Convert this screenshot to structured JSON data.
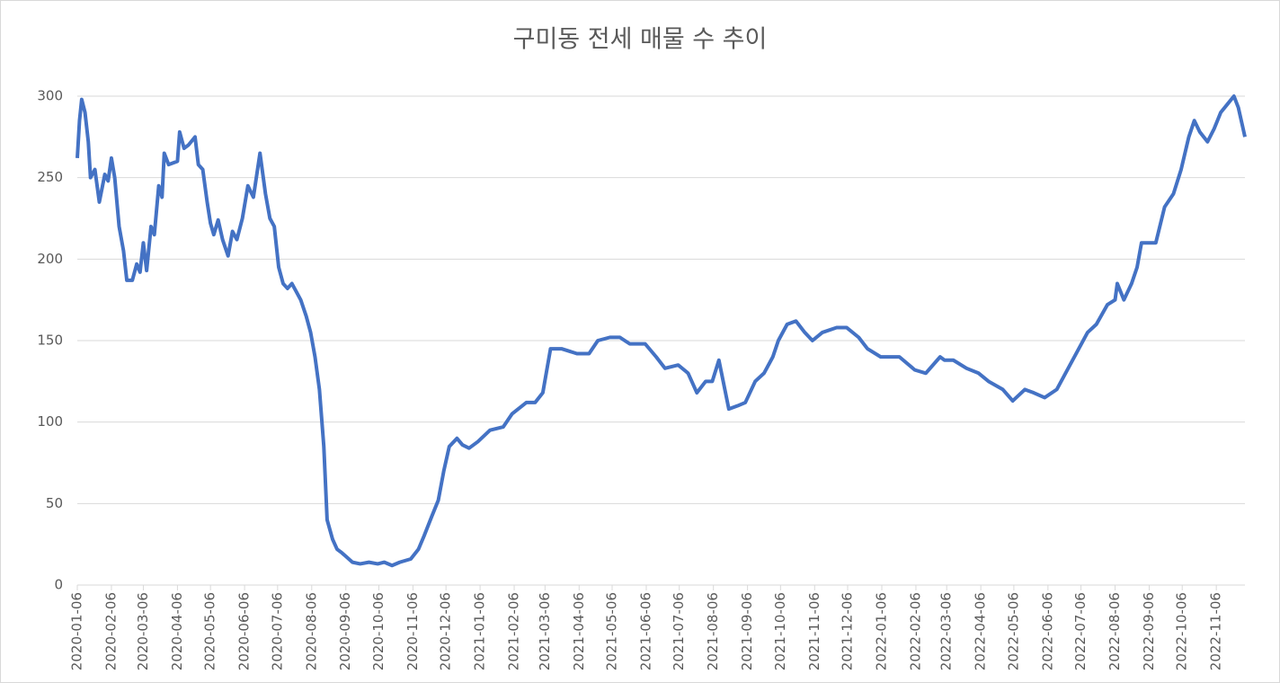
{
  "chart_data": {
    "type": "line",
    "title": "구미동 전세 매물 수 추이",
    "x": [
      "2020-01-06",
      "2020-01-08",
      "2020-01-10",
      "2020-01-13",
      "2020-01-16",
      "2020-01-18",
      "2020-01-22",
      "2020-01-26",
      "2020-01-31",
      "2020-02-03",
      "2020-02-06",
      "2020-02-09",
      "2020-02-13",
      "2020-02-17",
      "2020-02-20",
      "2020-02-25",
      "2020-02-29",
      "2020-03-03",
      "2020-03-06",
      "2020-03-09",
      "2020-03-13",
      "2020-03-16",
      "2020-03-20",
      "2020-03-23",
      "2020-03-25",
      "2020-03-29",
      "2020-04-06",
      "2020-04-08",
      "2020-04-12",
      "2020-04-16",
      "2020-04-22",
      "2020-04-25",
      "2020-04-29",
      "2020-05-03",
      "2020-05-06",
      "2020-05-09",
      "2020-05-13",
      "2020-05-17",
      "2020-05-22",
      "2020-05-26",
      "2020-05-30",
      "2020-06-04",
      "2020-06-09",
      "2020-06-14",
      "2020-06-20",
      "2020-06-25",
      "2020-06-29",
      "2020-07-03",
      "2020-07-07",
      "2020-07-11",
      "2020-07-15",
      "2020-07-19",
      "2020-07-23",
      "2020-07-27",
      "2020-08-01",
      "2020-08-05",
      "2020-08-09",
      "2020-08-13",
      "2020-08-17",
      "2020-08-20",
      "2020-08-25",
      "2020-08-29",
      "2020-09-02",
      "2020-09-07",
      "2020-09-12",
      "2020-09-19",
      "2020-09-27",
      "2020-10-05",
      "2020-10-11",
      "2020-10-18",
      "2020-10-25",
      "2020-11-04",
      "2020-11-11",
      "2020-11-16",
      "2020-11-23",
      "2020-11-29",
      "2020-12-04",
      "2020-12-09",
      "2020-12-16",
      "2020-12-21",
      "2020-12-27",
      "2021-01-04",
      "2021-01-15",
      "2021-01-27",
      "2021-02-04",
      "2021-02-17",
      "2021-02-25",
      "2021-03-04",
      "2021-03-11",
      "2021-03-21",
      "2021-04-04",
      "2021-04-15",
      "2021-04-23",
      "2021-05-04",
      "2021-05-13",
      "2021-05-22",
      "2021-06-05",
      "2021-06-15",
      "2021-06-23",
      "2021-07-05",
      "2021-07-14",
      "2021-07-22",
      "2021-07-30",
      "2021-08-05",
      "2021-08-11",
      "2021-08-20",
      "2021-08-28",
      "2021-09-04",
      "2021-09-13",
      "2021-09-21",
      "2021-09-29",
      "2021-10-04",
      "2021-10-12",
      "2021-10-20",
      "2021-10-28",
      "2021-11-04",
      "2021-11-13",
      "2021-11-26",
      "2021-12-05",
      "2021-12-16",
      "2021-12-24",
      "2022-01-05",
      "2022-01-22",
      "2022-02-05",
      "2022-02-15",
      "2022-02-28",
      "2022-03-04",
      "2022-03-12",
      "2022-03-24",
      "2022-04-04",
      "2022-04-13",
      "2022-04-26",
      "2022-05-05",
      "2022-05-16",
      "2022-05-24",
      "2022-06-03",
      "2022-06-14",
      "2022-06-26",
      "2022-07-04",
      "2022-07-12",
      "2022-07-20",
      "2022-07-30",
      "2022-08-06",
      "2022-08-08",
      "2022-08-14",
      "2022-08-21",
      "2022-08-26",
      "2022-08-30",
      "2022-09-04",
      "2022-09-12",
      "2022-09-20",
      "2022-09-28",
      "2022-10-05",
      "2022-10-12",
      "2022-10-17",
      "2022-10-22",
      "2022-10-29",
      "2022-11-04",
      "2022-11-10",
      "2022-11-16",
      "2022-11-22",
      "2022-11-26",
      "2022-12-02"
    ],
    "series": [
      {
        "color": "#4472c4",
        "values": [
          262,
          285,
          298,
          290,
          272,
          250,
          255,
          235,
          252,
          248,
          262,
          250,
          220,
          205,
          187,
          187,
          197,
          192,
          210,
          193,
          220,
          215,
          245,
          238,
          265,
          258,
          260,
          278,
          268,
          270,
          275,
          258,
          255,
          235,
          222,
          215,
          224,
          212,
          202,
          217,
          212,
          225,
          245,
          238,
          265,
          240,
          225,
          220,
          195,
          185,
          182,
          185,
          180,
          175,
          165,
          155,
          140,
          120,
          85,
          40,
          28,
          22,
          20,
          17,
          14,
          13,
          14,
          13,
          14,
          12,
          14,
          16,
          22,
          30,
          42,
          52,
          70,
          85,
          90,
          86,
          84,
          88,
          95,
          97,
          105,
          112,
          112,
          118,
          145,
          145,
          142,
          142,
          150,
          152,
          152,
          148,
          148,
          140,
          133,
          135,
          130,
          118,
          125,
          125,
          138,
          108,
          110,
          112,
          125,
          130,
          140,
          150,
          160,
          162,
          155,
          150,
          155,
          158,
          158,
          152,
          145,
          140,
          140,
          132,
          130,
          140,
          138,
          138,
          133,
          130,
          125,
          120,
          113,
          120,
          118,
          115,
          120,
          135,
          145,
          155,
          160,
          172,
          175,
          185,
          175,
          185,
          195,
          210,
          210,
          210,
          232,
          240,
          255,
          275,
          285,
          278,
          272,
          280,
          290,
          295,
          300,
          293,
          275
        ]
      }
    ],
    "xlim": [
      "2020-01-06",
      "2022-12-02"
    ],
    "xticks": [
      "2020-01-06",
      "2020-02-06",
      "2020-03-06",
      "2020-04-06",
      "2020-05-06",
      "2020-06-06",
      "2020-07-06",
      "2020-08-06",
      "2020-09-06",
      "2020-10-06",
      "2020-11-06",
      "2020-12-06",
      "2021-01-06",
      "2021-02-06",
      "2021-03-06",
      "2021-04-06",
      "2021-05-06",
      "2021-06-06",
      "2021-07-06",
      "2021-08-06",
      "2021-09-06",
      "2021-10-06",
      "2021-11-06",
      "2021-12-06",
      "2022-01-06",
      "2022-02-06",
      "2022-03-06",
      "2022-04-06",
      "2022-05-06",
      "2022-06-06",
      "2022-07-06",
      "2022-08-06",
      "2022-09-06",
      "2022-10-06",
      "2022-11-06"
    ],
    "ylim": [
      0,
      300
    ],
    "yticks": [
      0,
      50,
      100,
      150,
      200,
      250,
      300
    ],
    "grid": true
  }
}
